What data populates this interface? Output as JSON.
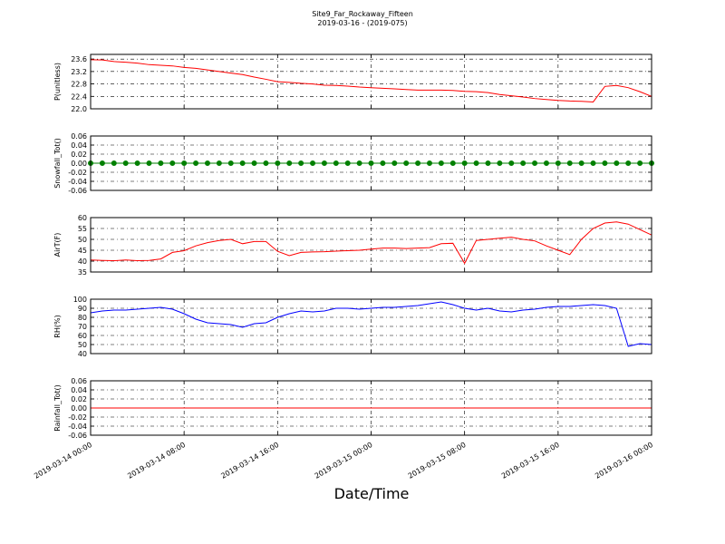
{
  "chart_data": [
    {
      "type": "line",
      "title": "Site9_Far_Rockaway_Fifteen",
      "subtitle": "2019-03-16 - (2019-075)",
      "ylabel": "P(unitless)",
      "color": "#ff0000",
      "xlim": [
        "2019-03-14 00:00",
        "2019-03-16 00:00"
      ],
      "xticks": [
        "2019-03-14 00:00",
        "2019-03-14 08:00",
        "2019-03-14 16:00",
        "2019-03-15 00:00",
        "2019-03-15 08:00",
        "2019-03-15 16:00",
        "2019-03-16 00:00"
      ],
      "ylim": [
        22.0,
        23.75
      ],
      "yticks": [
        {
          "value": 22.0,
          "label": "22.0"
        },
        22.4,
        22.8,
        23.2,
        23.6
      ],
      "grid": true,
      "x": [
        "2019-03-14 00:00",
        "2019-03-14 01:00",
        "2019-03-14 02:00",
        "2019-03-14 03:00",
        "2019-03-14 04:00",
        "2019-03-14 05:00",
        "2019-03-14 06:00",
        "2019-03-14 07:00",
        "2019-03-14 08:00",
        "2019-03-14 09:00",
        "2019-03-14 10:00",
        "2019-03-14 11:00",
        "2019-03-14 12:00",
        "2019-03-14 13:00",
        "2019-03-14 14:00",
        "2019-03-14 15:00",
        "2019-03-14 16:00",
        "2019-03-14 17:00",
        "2019-03-14 18:00",
        "2019-03-14 19:00",
        "2019-03-14 20:00",
        "2019-03-14 21:00",
        "2019-03-14 22:00",
        "2019-03-14 23:00",
        "2019-03-15 00:00",
        "2019-03-15 01:00",
        "2019-03-15 02:00",
        "2019-03-15 03:00",
        "2019-03-15 04:00",
        "2019-03-15 05:00",
        "2019-03-15 06:00",
        "2019-03-15 07:00",
        "2019-03-15 08:00",
        "2019-03-15 09:00",
        "2019-03-15 10:00",
        "2019-03-15 11:00",
        "2019-03-15 12:00",
        "2019-03-15 13:00",
        "2019-03-15 14:00",
        "2019-03-15 15:00",
        "2019-03-15 16:00",
        "2019-03-15 17:00",
        "2019-03-15 18:00",
        "2019-03-15 19:00",
        "2019-03-15 20:00",
        "2019-03-15 21:00",
        "2019-03-15 22:00",
        "2019-03-15 23:00",
        "2019-03-16 00:00"
      ],
      "values": [
        23.58,
        23.57,
        23.52,
        23.5,
        23.47,
        23.42,
        23.4,
        23.38,
        23.33,
        23.3,
        23.25,
        23.2,
        23.15,
        23.1,
        23.02,
        22.95,
        22.87,
        22.85,
        22.82,
        22.8,
        22.76,
        22.75,
        22.73,
        22.7,
        22.68,
        22.66,
        22.64,
        22.62,
        22.6,
        22.6,
        22.6,
        22.59,
        22.56,
        22.55,
        22.52,
        22.46,
        22.42,
        22.38,
        22.33,
        22.3,
        22.27,
        22.25,
        22.24,
        22.22,
        22.72,
        22.75,
        22.68,
        22.55,
        22.4
      ]
    },
    {
      "type": "line",
      "ylabel": "Snowfall_Tot()",
      "color": "#008000",
      "marker": true,
      "xlim": [
        "2019-03-14 00:00",
        "2019-03-16 00:00"
      ],
      "xticks": [
        "2019-03-14 00:00",
        "2019-03-14 08:00",
        "2019-03-14 16:00",
        "2019-03-15 00:00",
        "2019-03-15 08:00",
        "2019-03-15 16:00",
        "2019-03-16 00:00"
      ],
      "ylim": [
        -0.06,
        0.06
      ],
      "yticks": [
        {
          "value": -0.06,
          "label": "-0.06"
        },
        {
          "value": -0.04,
          "label": "-0.04"
        },
        {
          "value": -0.02,
          "label": "-0.02"
        },
        {
          "value": 0,
          "label": "0.00"
        },
        {
          "value": 0.02,
          "label": "0.02"
        },
        {
          "value": 0.04,
          "label": "0.04"
        },
        {
          "value": 0.06,
          "label": "0.06"
        }
      ],
      "grid": true,
      "x": [
        "2019-03-14 00:00",
        "2019-03-14 01:00",
        "2019-03-14 02:00",
        "2019-03-14 03:00",
        "2019-03-14 04:00",
        "2019-03-14 05:00",
        "2019-03-14 06:00",
        "2019-03-14 07:00",
        "2019-03-14 08:00",
        "2019-03-14 09:00",
        "2019-03-14 10:00",
        "2019-03-14 11:00",
        "2019-03-14 12:00",
        "2019-03-14 13:00",
        "2019-03-14 14:00",
        "2019-03-14 15:00",
        "2019-03-14 16:00",
        "2019-03-14 17:00",
        "2019-03-14 18:00",
        "2019-03-14 19:00",
        "2019-03-14 20:00",
        "2019-03-14 21:00",
        "2019-03-14 22:00",
        "2019-03-14 23:00",
        "2019-03-15 00:00",
        "2019-03-15 01:00",
        "2019-03-15 02:00",
        "2019-03-15 03:00",
        "2019-03-15 04:00",
        "2019-03-15 05:00",
        "2019-03-15 06:00",
        "2019-03-15 07:00",
        "2019-03-15 08:00",
        "2019-03-15 09:00",
        "2019-03-15 10:00",
        "2019-03-15 11:00",
        "2019-03-15 12:00",
        "2019-03-15 13:00",
        "2019-03-15 14:00",
        "2019-03-15 15:00",
        "2019-03-15 16:00",
        "2019-03-15 17:00",
        "2019-03-15 18:00",
        "2019-03-15 19:00",
        "2019-03-15 20:00",
        "2019-03-15 21:00",
        "2019-03-15 22:00",
        "2019-03-15 23:00",
        "2019-03-16 00:00"
      ],
      "values": [
        0,
        0,
        0,
        0,
        0,
        0,
        0,
        0,
        0,
        0,
        0,
        0,
        0,
        0,
        0,
        0,
        0,
        0,
        0,
        0,
        0,
        0,
        0,
        0,
        0,
        0,
        0,
        0,
        0,
        0,
        0,
        0,
        0,
        0,
        0,
        0,
        0,
        0,
        0,
        0,
        0,
        0,
        0,
        0,
        0,
        0,
        0,
        0,
        0
      ]
    },
    {
      "type": "line",
      "ylabel": "AirT(F)",
      "color": "#ff0000",
      "xlim": [
        "2019-03-14 00:00",
        "2019-03-16 00:00"
      ],
      "xticks": [
        "2019-03-14 00:00",
        "2019-03-14 08:00",
        "2019-03-14 16:00",
        "2019-03-15 00:00",
        "2019-03-15 08:00",
        "2019-03-15 16:00",
        "2019-03-16 00:00"
      ],
      "ylim": [
        35,
        60
      ],
      "yticks": [
        35,
        40,
        45,
        50,
        55,
        60
      ],
      "grid": true,
      "x": [
        "2019-03-14 00:00",
        "2019-03-14 01:00",
        "2019-03-14 02:00",
        "2019-03-14 03:00",
        "2019-03-14 04:00",
        "2019-03-14 05:00",
        "2019-03-14 06:00",
        "2019-03-14 07:00",
        "2019-03-14 08:00",
        "2019-03-14 09:00",
        "2019-03-14 10:00",
        "2019-03-14 11:00",
        "2019-03-14 12:00",
        "2019-03-14 13:00",
        "2019-03-14 14:00",
        "2019-03-14 15:00",
        "2019-03-14 16:00",
        "2019-03-14 17:00",
        "2019-03-14 18:00",
        "2019-03-14 19:00",
        "2019-03-14 20:00",
        "2019-03-14 21:00",
        "2019-03-14 22:00",
        "2019-03-14 23:00",
        "2019-03-15 00:00",
        "2019-03-15 01:00",
        "2019-03-15 02:00",
        "2019-03-15 03:00",
        "2019-03-15 04:00",
        "2019-03-15 05:00",
        "2019-03-15 06:00",
        "2019-03-15 07:00",
        "2019-03-15 08:00",
        "2019-03-15 09:00",
        "2019-03-15 10:00",
        "2019-03-15 11:00",
        "2019-03-15 12:00",
        "2019-03-15 13:00",
        "2019-03-15 14:00",
        "2019-03-15 15:00",
        "2019-03-15 16:00",
        "2019-03-15 17:00",
        "2019-03-15 18:00",
        "2019-03-15 19:00",
        "2019-03-15 20:00",
        "2019-03-15 21:00",
        "2019-03-15 22:00",
        "2019-03-15 23:00",
        "2019-03-16 00:00"
      ],
      "values": [
        40.5,
        40.3,
        40.2,
        40.5,
        40.2,
        40.3,
        41,
        44,
        44.8,
        47,
        48.5,
        49.5,
        50,
        48,
        49,
        49,
        44.5,
        42.5,
        44,
        44.2,
        44.3,
        44.6,
        44.8,
        45,
        45.5,
        46,
        46,
        45.8,
        46,
        46.2,
        48,
        48.2,
        39,
        49.5,
        50,
        50.5,
        51,
        50,
        49.3,
        47,
        45,
        43,
        50,
        55,
        57.5,
        58,
        57,
        54.5,
        52
      ]
    },
    {
      "type": "line",
      "ylabel": "RH(%)",
      "color": "#0000ff",
      "xlim": [
        "2019-03-14 00:00",
        "2019-03-16 00:00"
      ],
      "xticks": [
        "2019-03-14 00:00",
        "2019-03-14 08:00",
        "2019-03-14 16:00",
        "2019-03-15 00:00",
        "2019-03-15 08:00",
        "2019-03-15 16:00",
        "2019-03-16 00:00"
      ],
      "ylim": [
        40,
        100
      ],
      "yticks": [
        40,
        50,
        60,
        70,
        80,
        90,
        100
      ],
      "grid": true,
      "x": [
        "2019-03-14 00:00",
        "2019-03-14 01:00",
        "2019-03-14 02:00",
        "2019-03-14 03:00",
        "2019-03-14 04:00",
        "2019-03-14 05:00",
        "2019-03-14 06:00",
        "2019-03-14 07:00",
        "2019-03-14 08:00",
        "2019-03-14 09:00",
        "2019-03-14 10:00",
        "2019-03-14 11:00",
        "2019-03-14 12:00",
        "2019-03-14 13:00",
        "2019-03-14 14:00",
        "2019-03-14 15:00",
        "2019-03-14 16:00",
        "2019-03-14 17:00",
        "2019-03-14 18:00",
        "2019-03-14 19:00",
        "2019-03-14 20:00",
        "2019-03-14 21:00",
        "2019-03-14 22:00",
        "2019-03-14 23:00",
        "2019-03-15 00:00",
        "2019-03-15 01:00",
        "2019-03-15 02:00",
        "2019-03-15 03:00",
        "2019-03-15 04:00",
        "2019-03-15 05:00",
        "2019-03-15 06:00",
        "2019-03-15 07:00",
        "2019-03-15 08:00",
        "2019-03-15 09:00",
        "2019-03-15 10:00",
        "2019-03-15 11:00",
        "2019-03-15 12:00",
        "2019-03-15 13:00",
        "2019-03-15 14:00",
        "2019-03-15 15:00",
        "2019-03-15 16:00",
        "2019-03-15 17:00",
        "2019-03-15 18:00",
        "2019-03-15 19:00",
        "2019-03-15 20:00",
        "2019-03-15 21:00",
        "2019-03-15 22:00",
        "2019-03-15 23:00",
        "2019-03-16 00:00"
      ],
      "values": [
        85,
        87,
        88,
        88,
        89,
        90,
        91,
        89,
        84,
        78,
        74,
        73,
        72,
        69,
        73,
        74,
        80,
        84,
        87,
        86,
        87,
        90,
        90,
        89,
        90,
        91,
        91,
        92,
        93,
        95,
        97,
        94,
        90,
        88,
        90,
        87,
        86,
        88,
        89,
        91,
        92,
        92,
        93,
        94,
        93,
        90,
        48,
        51,
        50
      ]
    },
    {
      "type": "line",
      "ylabel": "Rainfall_Tot()",
      "xlabel": "Date/Time",
      "color": "#ff0000",
      "xlim": [
        "2019-03-14 00:00",
        "2019-03-16 00:00"
      ],
      "xticks": [
        "2019-03-14 00:00",
        "2019-03-14 08:00",
        "2019-03-14 16:00",
        "2019-03-15 00:00",
        "2019-03-15 08:00",
        "2019-03-15 16:00",
        "2019-03-16 00:00"
      ],
      "ylim": [
        -0.06,
        0.06
      ],
      "yticks": [
        {
          "value": -0.06,
          "label": "-0.06"
        },
        {
          "value": -0.04,
          "label": "-0.04"
        },
        {
          "value": -0.02,
          "label": "-0.02"
        },
        {
          "value": 0,
          "label": "0.00"
        },
        {
          "value": 0.02,
          "label": "0.02"
        },
        {
          "value": 0.04,
          "label": "0.04"
        },
        {
          "value": 0.06,
          "label": "0.06"
        }
      ],
      "grid": true,
      "x": [
        "2019-03-14 00:00",
        "2019-03-14 01:00",
        "2019-03-14 02:00",
        "2019-03-14 03:00",
        "2019-03-14 04:00",
        "2019-03-14 05:00",
        "2019-03-14 06:00",
        "2019-03-14 07:00",
        "2019-03-14 08:00",
        "2019-03-14 09:00",
        "2019-03-14 10:00",
        "2019-03-14 11:00",
        "2019-03-14 12:00",
        "2019-03-14 13:00",
        "2019-03-14 14:00",
        "2019-03-14 15:00",
        "2019-03-14 16:00",
        "2019-03-14 17:00",
        "2019-03-14 18:00",
        "2019-03-14 19:00",
        "2019-03-14 20:00",
        "2019-03-14 21:00",
        "2019-03-14 22:00",
        "2019-03-14 23:00",
        "2019-03-15 00:00",
        "2019-03-15 01:00",
        "2019-03-15 02:00",
        "2019-03-15 03:00",
        "2019-03-15 04:00",
        "2019-03-15 05:00",
        "2019-03-15 06:00",
        "2019-03-15 07:00",
        "2019-03-15 08:00",
        "2019-03-15 09:00",
        "2019-03-15 10:00",
        "2019-03-15 11:00",
        "2019-03-15 12:00",
        "2019-03-15 13:00",
        "2019-03-15 14:00",
        "2019-03-15 15:00",
        "2019-03-15 16:00",
        "2019-03-15 17:00",
        "2019-03-15 18:00",
        "2019-03-15 19:00",
        "2019-03-15 20:00",
        "2019-03-15 21:00",
        "2019-03-15 22:00",
        "2019-03-15 23:00",
        "2019-03-16 00:00"
      ],
      "values": [
        0,
        0,
        0,
        0,
        0,
        0,
        0,
        0,
        0,
        0,
        0,
        0,
        0,
        0,
        0,
        0,
        0,
        0,
        0,
        0,
        0,
        0,
        0,
        0,
        0,
        0,
        0,
        0,
        0,
        0,
        0,
        0,
        0,
        0,
        0,
        0,
        0,
        0,
        0,
        0,
        0,
        0,
        0,
        0,
        0,
        0,
        0,
        0,
        0
      ]
    }
  ]
}
